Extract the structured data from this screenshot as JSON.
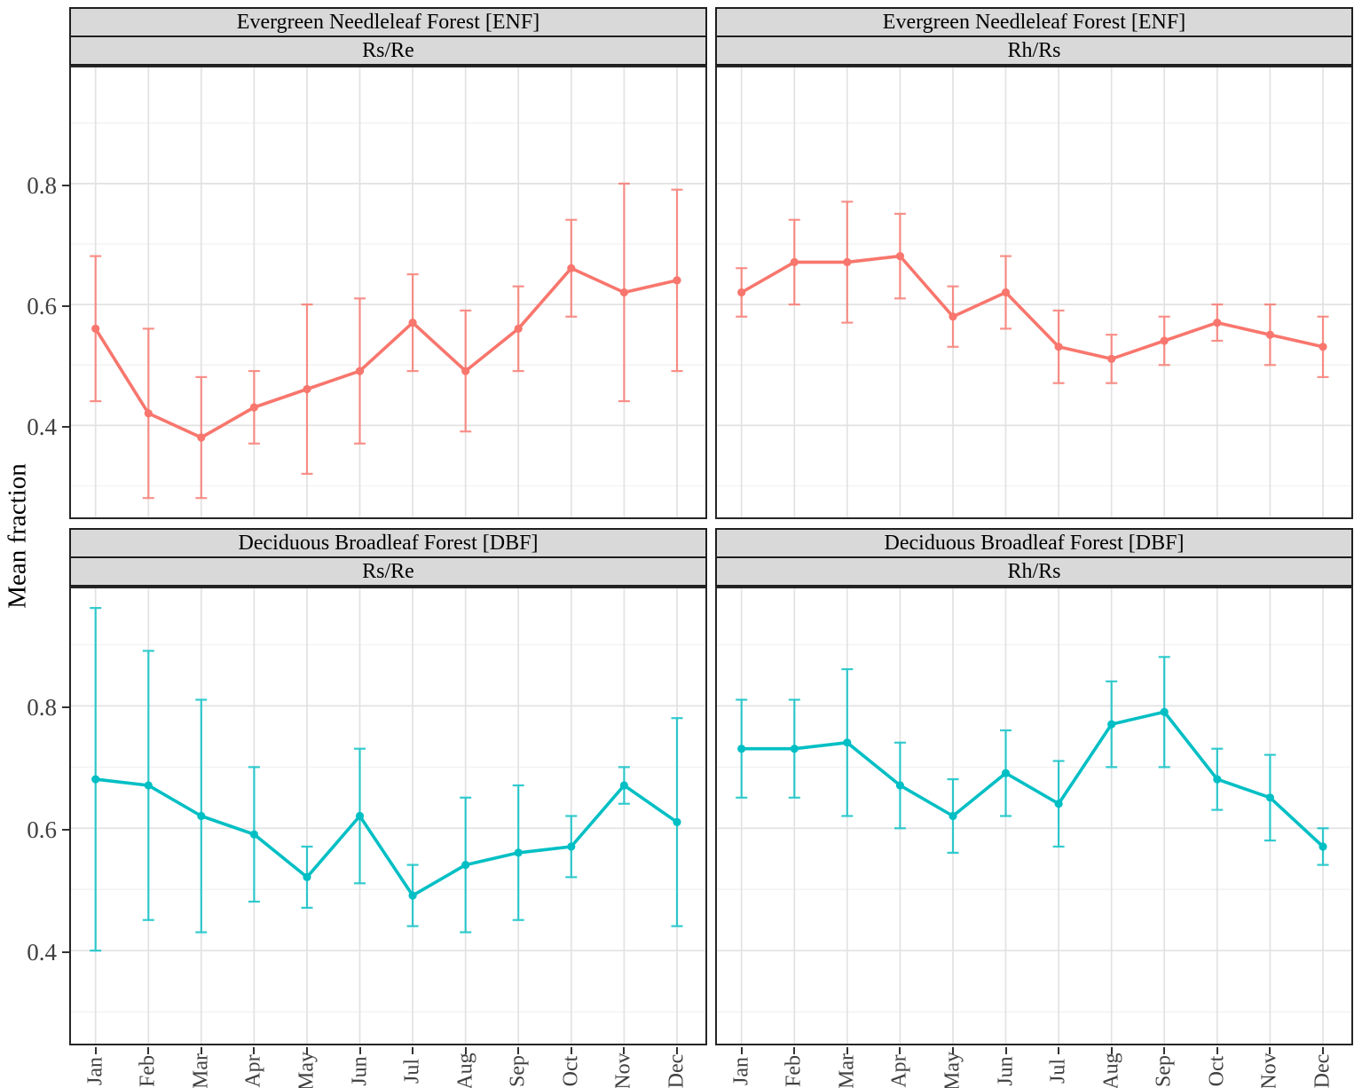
{
  "chart_data": {
    "type": "line",
    "ylabel": "Mean fraction",
    "x": [
      "Jan",
      "Feb",
      "Mar",
      "Apr",
      "May",
      "Jun",
      "Jul",
      "Aug",
      "Sep",
      "Oct",
      "Nov",
      "Dec"
    ],
    "y_domain": [
      0.245,
      0.995
    ],
    "y_major_ticks": [
      0.8,
      0.6,
      0.4
    ],
    "y_minor_ticks": [
      0.9,
      0.7,
      0.5,
      0.3
    ],
    "grid": "on",
    "legend": "none",
    "facets": [
      {
        "row": "Evergreen Needleleaf Forest [ENF]",
        "col": "Rs/Re",
        "color": "#F8766D",
        "values": [
          0.56,
          0.42,
          0.38,
          0.43,
          0.46,
          0.49,
          0.57,
          0.49,
          0.56,
          0.66,
          0.62,
          0.64
        ],
        "lower": [
          0.44,
          0.28,
          0.28,
          0.37,
          0.32,
          0.37,
          0.49,
          0.39,
          0.49,
          0.58,
          0.44,
          0.49
        ],
        "upper": [
          0.68,
          0.56,
          0.48,
          0.49,
          0.6,
          0.61,
          0.65,
          0.59,
          0.63,
          0.74,
          0.8,
          0.79
        ]
      },
      {
        "row": "Evergreen Needleleaf Forest [ENF]",
        "col": "Rh/Rs",
        "color": "#F8766D",
        "values": [
          0.62,
          0.67,
          0.67,
          0.68,
          0.58,
          0.62,
          0.53,
          0.51,
          0.54,
          0.57,
          0.55,
          0.53
        ],
        "lower": [
          0.58,
          0.6,
          0.57,
          0.61,
          0.53,
          0.56,
          0.47,
          0.47,
          0.5,
          0.54,
          0.5,
          0.48
        ],
        "upper": [
          0.66,
          0.74,
          0.77,
          0.75,
          0.63,
          0.68,
          0.59,
          0.55,
          0.58,
          0.6,
          0.6,
          0.58
        ]
      },
      {
        "row": "Deciduous Broadleaf Forest [DBF]",
        "col": "Rs/Re",
        "color": "#00BFC4",
        "values": [
          0.68,
          0.67,
          0.62,
          0.59,
          0.52,
          0.62,
          0.49,
          0.54,
          0.56,
          0.57,
          0.67,
          0.61
        ],
        "lower": [
          0.4,
          0.45,
          0.43,
          0.48,
          0.47,
          0.51,
          0.44,
          0.43,
          0.45,
          0.52,
          0.64,
          0.44
        ],
        "upper": [
          0.96,
          0.89,
          0.81,
          0.7,
          0.57,
          0.73,
          0.54,
          0.65,
          0.67,
          0.62,
          0.7,
          0.78
        ]
      },
      {
        "row": "Deciduous Broadleaf Forest [DBF]",
        "col": "Rh/Rs",
        "color": "#00BFC4",
        "values": [
          0.73,
          0.73,
          0.74,
          0.67,
          0.62,
          0.69,
          0.64,
          0.77,
          0.79,
          0.68,
          0.65,
          0.57
        ],
        "lower": [
          0.65,
          0.65,
          0.62,
          0.6,
          0.56,
          0.62,
          0.57,
          0.7,
          0.7,
          0.63,
          0.58,
          0.54
        ],
        "upper": [
          0.81,
          0.81,
          0.86,
          0.74,
          0.68,
          0.76,
          0.71,
          0.84,
          0.88,
          0.73,
          0.72,
          0.6
        ]
      }
    ]
  }
}
